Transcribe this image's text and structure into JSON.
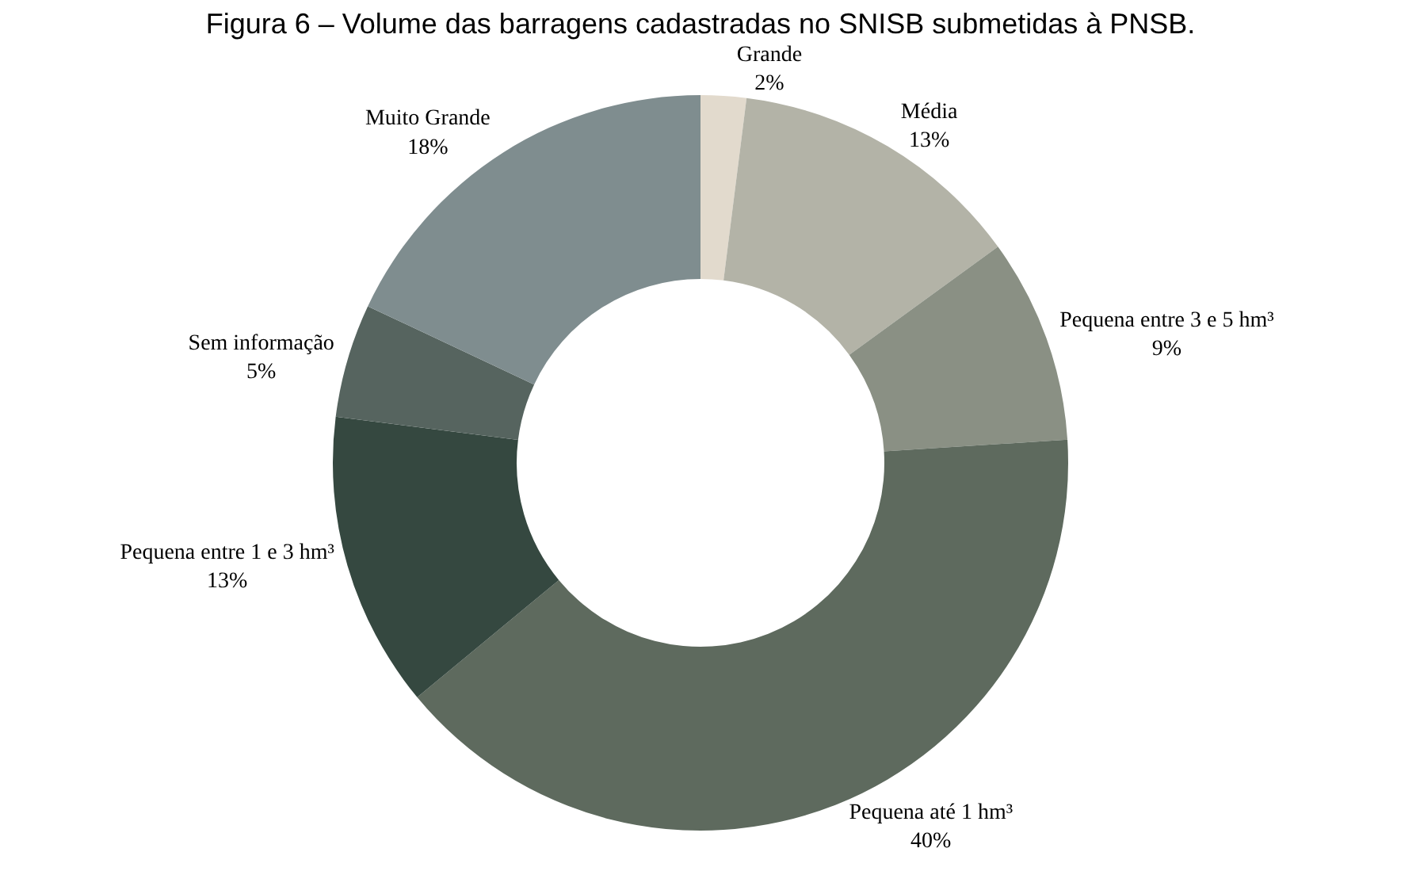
{
  "chart_data": {
    "type": "donut",
    "title": "Figura 6 – Volume das barragens cadastradas no SNISB submetidas à PNSB.",
    "categories": [
      "Grande",
      "Média",
      "Pequena entre 3 e 5 hm³",
      "Pequena até 1 hm³",
      "Pequena entre 1 e 3 hm³",
      "Sem informação",
      "Muito Grande"
    ],
    "values": [
      2,
      13,
      9,
      40,
      13,
      5,
      18
    ],
    "value_labels": [
      "2%",
      "13%",
      "9%",
      "40%",
      "13%",
      "5%",
      "18%"
    ],
    "colors": [
      "#e2dacd",
      "#b3b3a7",
      "#8a9084",
      "#5e6a5e",
      "#354840",
      "#56645f",
      "#7f8d8f"
    ],
    "legend": false
  }
}
